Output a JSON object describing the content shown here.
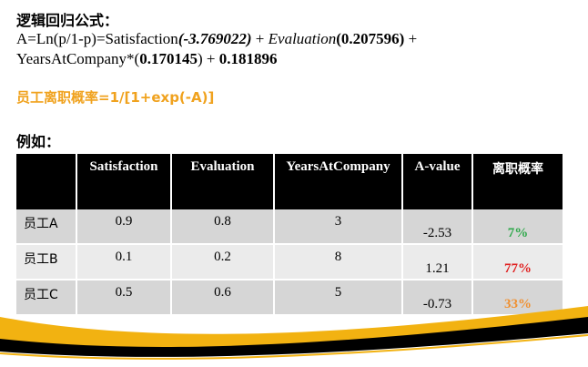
{
  "heading": "逻辑回归公式：",
  "formula": {
    "line1_a": "A=Ln(p/1-p)=Satisfaction",
    "line1_coef1": "(-3.769022)",
    "line1_b": " + ",
    "line1_eval": "Evaluation",
    "line1_coef2": "(0.207596)",
    "line1_c": " +",
    "line2_a": "YearsAtCompany*(",
    "line2_coef3": "0.170145",
    "line2_b": ") + ",
    "line2_intercept": "0.181896"
  },
  "probability_formula": "员工离职概率=1/[1+exp(-A)]",
  "example_label": "例如：",
  "table": {
    "headers": [
      "",
      "Satisfaction",
      "Evaluation",
      "YearsAtCompany",
      "A-value",
      "离职概率"
    ],
    "rows": [
      {
        "employee": "员工A",
        "satisfaction": "0.9",
        "evaluation": "0.8",
        "years": "3",
        "a_value": "-2.53",
        "probability": "7%",
        "prob_color": "#2ea84a"
      },
      {
        "employee": "员工B",
        "satisfaction": "0.1",
        "evaluation": "0.2",
        "years": "8",
        "a_value": "1.21",
        "probability": "77%",
        "prob_color": "#e02020"
      },
      {
        "employee": "员工C",
        "satisfaction": "0.5",
        "evaluation": "0.6",
        "years": "5",
        "a_value": "-0.73",
        "probability": "33%",
        "prob_color": "#f09030"
      }
    ]
  },
  "colors": {
    "accent_orange": "#f0a21e",
    "header_bg": "#000000",
    "swoosh_gold": "#f2b211",
    "swoosh_black": "#000000"
  }
}
